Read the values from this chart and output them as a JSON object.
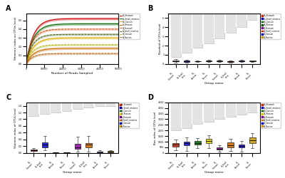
{
  "panel_labels": [
    "A",
    "B",
    "C",
    "D"
  ],
  "curve_colors_gh": [
    "#cc0000",
    "#006600",
    "#ddaa00",
    "#cc6600"
  ],
  "curve_colors_gl": [
    "#cc4400",
    "#004400",
    "#aaaa00",
    "#aa4400"
  ],
  "curve_labels": [
    "Gh_Stomach",
    "Gh_Small_intestine",
    "Gh_Caecum",
    "Gh_Rectum",
    "Gl_Stomach",
    "Gl_Small_intestine",
    "Gl_Caecum",
    "Gl_Rectum"
  ],
  "curve_maxes_gh": [
    0.52,
    0.46,
    0.3,
    0.18
  ],
  "curve_maxes_gl": [
    0.4,
    0.34,
    0.22,
    0.12
  ],
  "box_colors_b": [
    "#cc2200",
    "#0000cc",
    "#006600",
    "#006633",
    "#880099",
    "#cc2200",
    "#0000cc",
    "#cc9900"
  ],
  "box_colors_c": [
    "#cc2200",
    "#0000cc",
    "#006600",
    "#ddcc00",
    "#880099",
    "#cc6600",
    "#0000cc",
    "#cc9900"
  ],
  "box_colors_d": [
    "#cc2200",
    "#0000cc",
    "#006600",
    "#ddcc00",
    "#880099",
    "#cc6600",
    "#0000cc",
    "#cc9900"
  ],
  "legend_colors_b": [
    "#cc2200",
    "#0000bb",
    "#006600",
    "#005500",
    "#880099",
    "#cc2200",
    "#0000bb",
    "#cc9900"
  ],
  "legend_labels": [
    "Gh_Stomach",
    "Gh_Small_intestine",
    "Gh_Caecum",
    "Gh_Rectum",
    "Gl_Stomach",
    "Gl_Small_intestine",
    "Gl_Caecum",
    "Gl_Rectum"
  ],
  "group_names": [
    "Gh_Stomach",
    "Gh_Small_intestine",
    "Gh_Caecum",
    "Gh_Rectum",
    "Gl_Stomach",
    "Gl_Small_intestine",
    "Gl_Caecum",
    "Gl_Rectum"
  ],
  "xlabel": "Group name",
  "ylabel_a": "Shannon index on OTUs level",
  "ylabel_b": "Rarefied of OTUs level",
  "ylabel_c": "Shannon index of OTUs level",
  "ylabel_d": "Box index of OTUs level",
  "ylim_b": [
    0,
    5.5
  ],
  "ylim_c": [
    0,
    1.5
  ],
  "ylim_d": [
    0,
    4500
  ],
  "stair_b": [
    0.8,
    1.2,
    1.8,
    2.2,
    2.8,
    3.4,
    4.0,
    4.8
  ],
  "stair_c": [
    1.1,
    1.15,
    1.2,
    1.25,
    1.3,
    1.35,
    1.38,
    1.4
  ],
  "stair_d": [
    2000,
    2200,
    2600,
    2800,
    3000,
    3200,
    3400,
    3600
  ]
}
